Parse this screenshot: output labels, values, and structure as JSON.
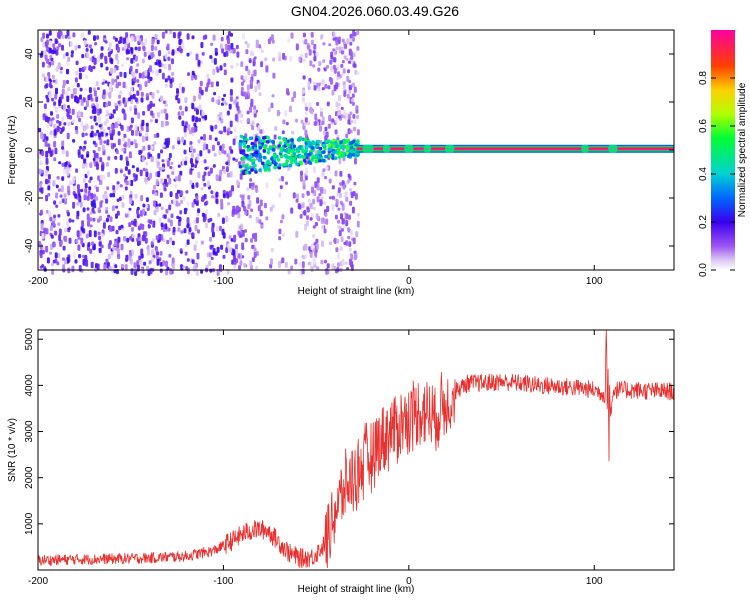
{
  "title": "GN04.2026.060.03.49.G26",
  "chart_data": [
    {
      "type": "heatmap",
      "title": "GN04.2026.060.03.49.G26",
      "xlabel": "Height of straight line (km)",
      "ylabel": "Frequency (Hz)",
      "xlim": [
        -200,
        143
      ],
      "ylim": [
        -50,
        50
      ],
      "xticks": [
        -200,
        -100,
        0,
        100
      ],
      "yticks": [
        -40,
        -20,
        0,
        20,
        40
      ],
      "colorbar": {
        "label": "Normalized spectral amplitude",
        "range": [
          0,
          1
        ],
        "ticks": [
          0,
          0.2,
          0.4,
          0.6,
          0.8
        ],
        "tick_labels": [
          "0.0",
          "0.2",
          "0.4",
          "0.6",
          "0.8"
        ]
      },
      "features": [
        {
          "name": "noise region",
          "x_range": [
            -200,
            -28
          ],
          "y_range": [
            -50,
            50
          ],
          "amplitude": 0.1
        },
        {
          "name": "converging signal",
          "x_range": [
            -92,
            -28
          ],
          "y_center": 0,
          "spread_hz": 8,
          "amplitude": 0.35
        },
        {
          "name": "coherent tone line",
          "x_range": [
            -28,
            143
          ],
          "y_center": 0.5,
          "amplitude": 0.95
        }
      ]
    },
    {
      "type": "line",
      "xlabel": "Height of straight line (km)",
      "ylabel": "SNR (10 * v/v)",
      "xlim": [
        -200,
        143
      ],
      "ylim": [
        0,
        5200
      ],
      "xticks": [
        -200,
        -100,
        0,
        100
      ],
      "yticks": [
        1000,
        2000,
        3000,
        4000,
        5000
      ],
      "series": [
        {
          "name": "SNR",
          "color": "#e8312e",
          "x": [
            -200,
            -180,
            -160,
            -140,
            -120,
            -105,
            -95,
            -88,
            -82,
            -76,
            -70,
            -64,
            -58,
            -52,
            -46,
            -40,
            -34,
            -28,
            -22,
            -16,
            -10,
            -4,
            2,
            8,
            14,
            20,
            26,
            32,
            40,
            50,
            60,
            70,
            80,
            90,
            100,
            106,
            108,
            110,
            120,
            130,
            143
          ],
          "y": [
            210,
            230,
            240,
            260,
            300,
            420,
            640,
            820,
            880,
            860,
            600,
            350,
            250,
            280,
            520,
            1250,
            1800,
            2100,
            2400,
            2800,
            3000,
            3200,
            3350,
            3500,
            3300,
            3650,
            3900,
            4050,
            4050,
            4080,
            4050,
            4000,
            3980,
            3950,
            3900,
            3800,
            3000,
            3900,
            3900,
            3880,
            3870
          ]
        }
      ]
    }
  ]
}
